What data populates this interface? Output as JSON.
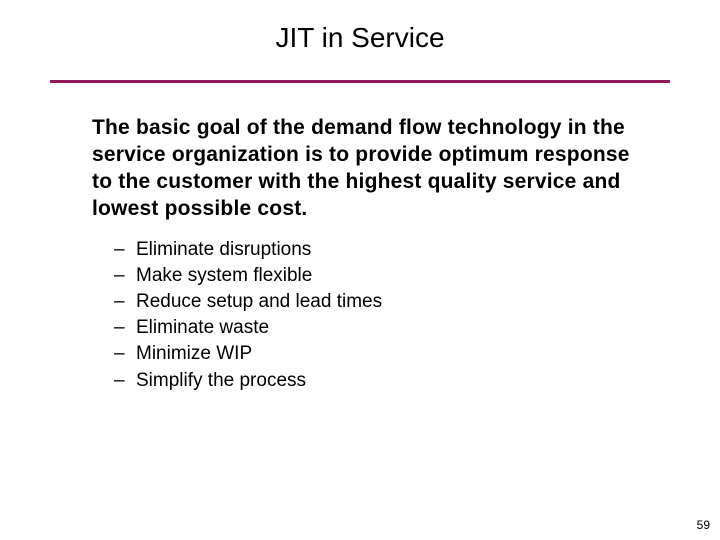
{
  "slide": {
    "title": "JIT in Service",
    "title_fontsize": 28,
    "divider_color": "#901858",
    "divider_width": 620,
    "divider_height": 3,
    "intro_text": "The basic goal of the demand flow technology in the service organization is to provide optimum response to the customer with the  highest  quality  service  and lowest  possible  cost.",
    "intro_fontsize": 21,
    "intro_fontweight": "bold",
    "bullets": [
      "Eliminate disruptions",
      "Make system flexible",
      "Reduce setup and lead times",
      "Eliminate waste",
      "Minimize WIP",
      "Simplify the process"
    ],
    "bullet_marker": "–",
    "bullet_fontsize": 19,
    "page_number": "59",
    "background_color": "#ffffff",
    "text_color": "#000000"
  }
}
